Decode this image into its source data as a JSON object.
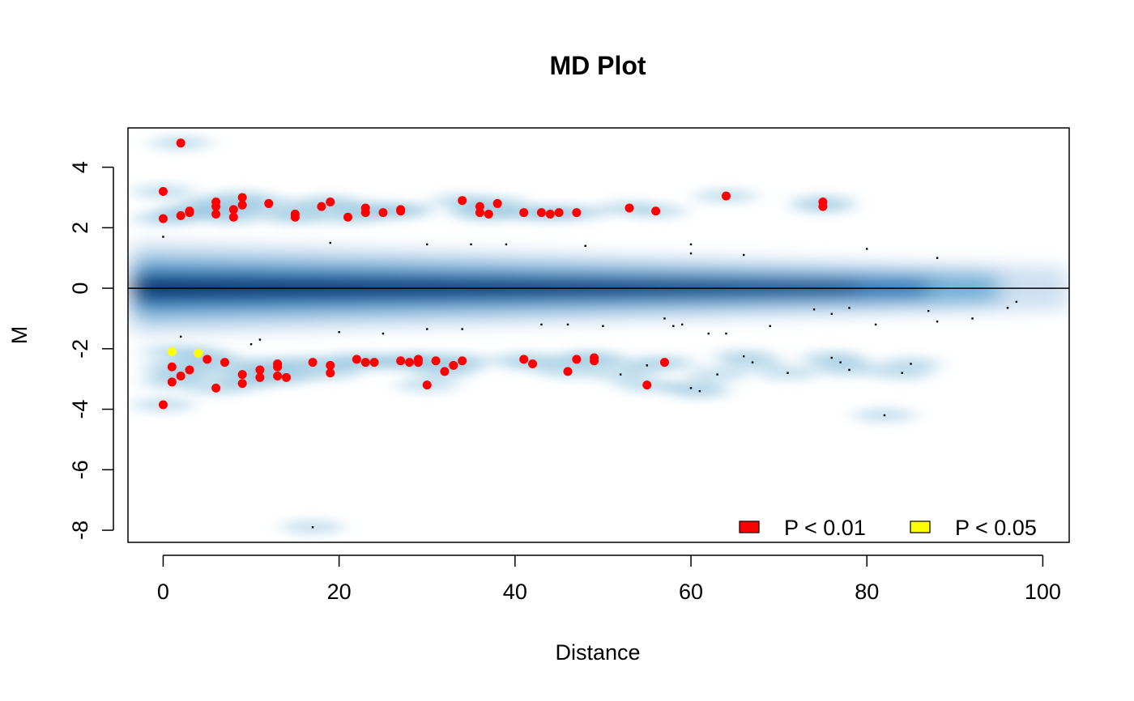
{
  "chart_data": {
    "type": "scatter",
    "title": "MD Plot",
    "xlabel": "Distance",
    "ylabel": "M",
    "xlim": [
      -4,
      103
    ],
    "ylim": [
      -8.4,
      5.3
    ],
    "x_ticks": [
      0,
      20,
      40,
      60,
      80,
      100
    ],
    "y_ticks": [
      4,
      2,
      0,
      -2,
      -4,
      -6,
      -8
    ],
    "reference_line_y": 0,
    "grid": false,
    "legend_position": "bottom-right",
    "background": "smoothed density (blue)",
    "colors": {
      "density_dark": "#08306b",
      "density_light": "#c6dbef",
      "p01": "#ff0000",
      "p05": "#ffff00",
      "other": "#000000"
    },
    "series": [
      {
        "name": "P < 0.01",
        "color": "#ff0000",
        "points": [
          [
            2,
            4.8
          ],
          [
            0,
            3.2
          ],
          [
            0,
            2.3
          ],
          [
            2,
            2.4
          ],
          [
            3,
            2.5
          ],
          [
            3,
            2.55
          ],
          [
            6,
            2.85
          ],
          [
            6,
            2.7
          ],
          [
            6,
            2.45
          ],
          [
            8,
            2.6
          ],
          [
            8,
            2.35
          ],
          [
            9,
            3.0
          ],
          [
            9,
            2.75
          ],
          [
            12,
            2.8
          ],
          [
            15,
            2.45
          ],
          [
            15,
            2.35
          ],
          [
            18,
            2.7
          ],
          [
            19,
            2.85
          ],
          [
            21,
            2.35
          ],
          [
            23,
            2.65
          ],
          [
            23,
            2.5
          ],
          [
            25,
            2.5
          ],
          [
            27,
            2.6
          ],
          [
            27,
            2.55
          ],
          [
            34,
            2.9
          ],
          [
            36,
            2.7
          ],
          [
            36,
            2.5
          ],
          [
            37,
            2.45
          ],
          [
            38,
            2.8
          ],
          [
            41,
            2.5
          ],
          [
            43,
            2.5
          ],
          [
            44,
            2.45
          ],
          [
            45,
            2.5
          ],
          [
            47,
            2.5
          ],
          [
            53,
            2.65
          ],
          [
            56,
            2.55
          ],
          [
            64,
            3.05
          ],
          [
            75,
            2.85
          ],
          [
            75,
            2.7
          ],
          [
            1,
            -2.6
          ],
          [
            1,
            -3.1
          ],
          [
            2,
            -2.9
          ],
          [
            3,
            -2.7
          ],
          [
            5,
            -2.35
          ],
          [
            6,
            -3.3
          ],
          [
            7,
            -2.45
          ],
          [
            9,
            -2.85
          ],
          [
            9,
            -3.15
          ],
          [
            11,
            -2.7
          ],
          [
            11,
            -2.95
          ],
          [
            13,
            -2.5
          ],
          [
            13,
            -2.6
          ],
          [
            13,
            -2.9
          ],
          [
            14,
            -2.95
          ],
          [
            17,
            -2.45
          ],
          [
            19,
            -2.55
          ],
          [
            19,
            -2.8
          ],
          [
            22,
            -2.35
          ],
          [
            23,
            -2.45
          ],
          [
            24,
            -2.45
          ],
          [
            27,
            -2.4
          ],
          [
            28,
            -2.45
          ],
          [
            29,
            -2.45
          ],
          [
            29,
            -2.35
          ],
          [
            30,
            -3.2
          ],
          [
            31,
            -2.4
          ],
          [
            32,
            -2.75
          ],
          [
            33,
            -2.55
          ],
          [
            34,
            -2.4
          ],
          [
            41,
            -2.35
          ],
          [
            42,
            -2.5
          ],
          [
            46,
            -2.75
          ],
          [
            47,
            -2.35
          ],
          [
            49,
            -2.3
          ],
          [
            49,
            -2.4
          ],
          [
            55,
            -3.2
          ],
          [
            57,
            -2.45
          ],
          [
            0,
            -3.85
          ]
        ]
      },
      {
        "name": "P < 0.05",
        "color": "#ffff00",
        "points": [
          [
            1,
            -2.1
          ],
          [
            4,
            -2.15
          ]
        ]
      }
    ],
    "non_significant_points": [
      [
        0,
        1.7
      ],
      [
        19,
        1.5
      ],
      [
        30,
        1.45
      ],
      [
        35,
        1.45
      ],
      [
        39,
        1.45
      ],
      [
        48,
        1.4
      ],
      [
        60,
        1.45
      ],
      [
        60,
        1.15
      ],
      [
        66,
        1.1
      ],
      [
        80,
        1.3
      ],
      [
        88,
        1.0
      ],
      [
        2,
        -1.6
      ],
      [
        10,
        -1.85
      ],
      [
        11,
        -1.7
      ],
      [
        20,
        -1.45
      ],
      [
        25,
        -1.5
      ],
      [
        30,
        -1.35
      ],
      [
        34,
        -1.35
      ],
      [
        43,
        -1.2
      ],
      [
        46,
        -1.2
      ],
      [
        50,
        -1.25
      ],
      [
        57,
        -1.0
      ],
      [
        58,
        -1.25
      ],
      [
        59,
        -1.2
      ],
      [
        62,
        -1.5
      ],
      [
        64,
        -1.5
      ],
      [
        66,
        -2.25
      ],
      [
        67,
        -2.45
      ],
      [
        69,
        -1.25
      ],
      [
        52,
        -2.85
      ],
      [
        55,
        -2.55
      ],
      [
        60,
        -3.3
      ],
      [
        61,
        -3.4
      ],
      [
        63,
        -2.85
      ],
      [
        71,
        -2.8
      ],
      [
        74,
        -0.7
      ],
      [
        76,
        -0.85
      ],
      [
        76,
        -2.3
      ],
      [
        77,
        -2.45
      ],
      [
        78,
        -2.7
      ],
      [
        78,
        -0.65
      ],
      [
        81,
        -1.2
      ],
      [
        84,
        -2.8
      ],
      [
        85,
        -2.5
      ],
      [
        87,
        -0.75
      ],
      [
        88,
        -1.1
      ],
      [
        92,
        -1.0
      ],
      [
        96,
        -0.65
      ],
      [
        97,
        -0.45
      ],
      [
        82,
        -4.2
      ],
      [
        17,
        -7.9
      ]
    ],
    "legend": [
      {
        "label": "P < 0.01",
        "color": "#ff0000"
      },
      {
        "label": "P < 0.05",
        "color": "#ffff00"
      }
    ]
  }
}
